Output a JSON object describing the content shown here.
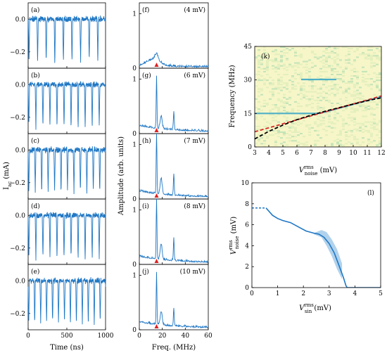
{
  "colors": {
    "trace": "#1f77c4",
    "marker": "#e02020",
    "dash_red": "#d62728",
    "dash_black": "#000000",
    "heat_bg": "#f6f6c8",
    "heat_line": "#33a3c7",
    "band": "#a9cdea"
  },
  "chart_data": [
    {
      "type": "line",
      "panel": "time-series",
      "labels": [
        "(a)",
        "(b)",
        "(c)",
        "(d)",
        "(e)"
      ],
      "xlabel": "Time (ns)",
      "ylabel": "I",
      "ylabel_sub": "ac",
      "ylabel_unit": " (mA)",
      "xlim": [
        0,
        1000
      ],
      "ylim": [
        -0.3,
        0.1
      ],
      "xticks": [
        0,
        500,
        1000
      ],
      "yticks": [
        0.0,
        -0.2
      ],
      "ytick_labels": [
        "0.0",
        "−0.2"
      ],
      "spike_counts": [
        9,
        11,
        12,
        11,
        13
      ],
      "baseline": 0.0,
      "spike_min": -0.3
    },
    {
      "type": "line",
      "panel": "spectra",
      "labels": [
        "(f)",
        "(g)",
        "(h)",
        "(i)",
        "(j)"
      ],
      "annotations": [
        "(4 mV)",
        "(6 mV)",
        "(7 mV)",
        "(8 mV)",
        "(10 mV)"
      ],
      "xlabel": "Freq. (MHz)",
      "ylabel": "Amplitude (arb. units)",
      "xlim": [
        0,
        60
      ],
      "ylim": [
        0,
        1.2
      ],
      "xticks": [
        0,
        20,
        40,
        60
      ],
      "yticks": [
        0,
        1
      ],
      "marker_x": 15,
      "peak_heights": [
        0.25,
        0.95,
        1.15,
        1.15,
        0.95
      ]
    },
    {
      "type": "heatmap",
      "panel": "(k)",
      "label": "(k)",
      "xlabel": "V",
      "xlabel_sup": "rms",
      "xlabel_sub": "noise",
      "xlabel_unit": " (mV)",
      "ylabel": "Frequency (MHz)",
      "xlim": [
        3,
        12
      ],
      "ylim": [
        0,
        45
      ],
      "xticks": [
        3,
        4,
        5,
        6,
        7,
        8,
        9,
        10,
        11,
        12
      ],
      "yticks": [
        0,
        15,
        30,
        45
      ],
      "ridges": [
        {
          "x0": 3.0,
          "x1": 7.6,
          "y": 15.0
        },
        {
          "x0": 7.6,
          "x1": 12.0,
          "y0": 15.0,
          "y1": 22.5
        },
        {
          "x0": 6.3,
          "x1": 8.8,
          "y": 30.2
        }
      ],
      "series": [
        {
          "style": "dashed-red",
          "x": [
            3,
            12
          ],
          "y": [
            6.8,
            22.8
          ]
        },
        {
          "style": "dashed-black",
          "x": [
            3,
            4,
            5,
            6,
            7,
            8,
            9,
            10,
            11,
            12
          ],
          "y": [
            3.6,
            7.0,
            9.8,
            12.2,
            14.2,
            16.0,
            17.6,
            19.2,
            20.7,
            22.0
          ]
        }
      ]
    },
    {
      "type": "line",
      "panel": "(l)",
      "label": "(l)",
      "xlabel": "V",
      "xlabel_sup": "rms",
      "xlabel_sub": "sin",
      "xlabel_unit": " (mV)",
      "ylabel": "V",
      "ylabel_sup": "rms",
      "ylabel_sub": "noise",
      "ylabel_unit": " (mV)",
      "xlim": [
        0,
        5
      ],
      "ylim": [
        0,
        10
      ],
      "xticks": [
        0,
        1,
        2,
        3,
        4,
        5
      ],
      "yticks": [
        0,
        2,
        4,
        6,
        8,
        10
      ],
      "dashed_segment": {
        "x": [
          0,
          0.55
        ],
        "y": [
          7.6,
          7.6
        ]
      },
      "x": [
        0.55,
        0.8,
        1.0,
        1.2,
        1.5,
        1.8,
        2.1,
        2.4,
        2.6,
        2.8,
        3.0,
        3.2,
        3.4,
        3.55,
        3.65,
        3.7,
        4.0,
        5.0
      ],
      "y": [
        7.6,
        6.9,
        6.6,
        6.4,
        6.2,
        5.8,
        5.4,
        5.2,
        5.1,
        4.8,
        4.2,
        3.3,
        2.0,
        1.0,
        0.2,
        0.0,
        0.0,
        0.0
      ],
      "band_upper": [
        5.2,
        5.5,
        5.3,
        4.6,
        3.7,
        2.3
      ],
      "band_lower": [
        5.1,
        4.8,
        4.0,
        3.0,
        1.8,
        0.8
      ],
      "band_x": [
        2.4,
        2.7,
        2.9,
        3.1,
        3.3,
        3.5
      ]
    }
  ]
}
